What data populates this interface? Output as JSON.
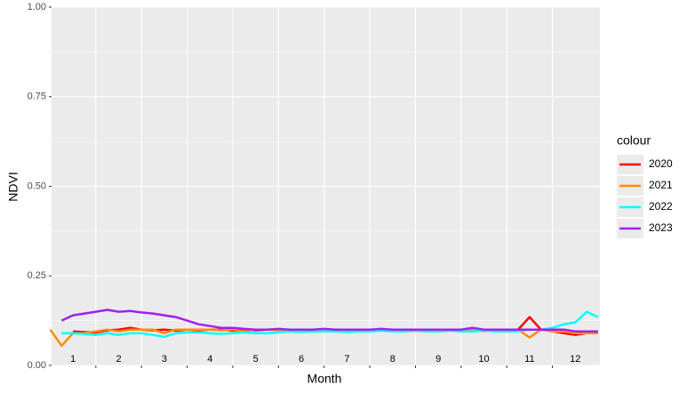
{
  "chart_data": {
    "type": "line",
    "x_label": "Month",
    "y_label": "NDVI",
    "legend_title": "colour",
    "legend_position": "right",
    "x": [
      0.5,
      0.75,
      1,
      1.25,
      1.5,
      1.75,
      2,
      2.25,
      2.5,
      2.75,
      3,
      3.25,
      3.5,
      3.75,
      4,
      4.25,
      4.5,
      4.75,
      5,
      5.25,
      5.5,
      5.75,
      6,
      6.25,
      6.5,
      6.75,
      7,
      7.25,
      7.5,
      7.75,
      8,
      8.25,
      8.5,
      8.75,
      9,
      9.25,
      9.5,
      9.75,
      10,
      10.25,
      10.5,
      10.75,
      11,
      11.25,
      11.5,
      11.75,
      12,
      12.25,
      12.5
    ],
    "series": [
      {
        "name": "2020",
        "color": "#ff0000",
        "values": [
          null,
          null,
          0.095,
          0.093,
          0.092,
          0.098,
          0.1,
          0.105,
          0.1,
          0.098,
          0.1,
          0.097,
          0.1,
          0.098,
          0.1,
          0.1,
          0.097,
          0.1,
          0.098,
          0.1,
          0.1,
          0.099,
          0.1,
          0.1,
          0.098,
          0.1,
          0.1,
          0.1,
          0.1,
          0.099,
          0.1,
          0.1,
          0.1,
          0.1,
          0.098,
          0.1,
          0.1,
          0.1,
          0.1,
          0.1,
          0.1,
          0.1,
          0.135,
          0.1,
          0.095,
          0.09,
          0.085,
          0.09,
          0.095
        ]
      },
      {
        "name": "2021",
        "color": "#ff8c00",
        "values": [
          0.1,
          0.055,
          0.09,
          0.09,
          0.095,
          0.1,
          0.095,
          0.1,
          0.1,
          0.1,
          0.09,
          0.1,
          0.1,
          0.1,
          0.1,
          0.098,
          0.1,
          0.095,
          0.1,
          0.1,
          0.098,
          0.1,
          0.1,
          0.1,
          0.1,
          0.1,
          0.098,
          0.1,
          0.1,
          0.1,
          0.1,
          0.1,
          0.1,
          0.1,
          0.098,
          0.1,
          0.1,
          0.1,
          0.095,
          0.1,
          0.1,
          0.1,
          0.078,
          0.1,
          0.095,
          0.095,
          0.09,
          0.09,
          0.09
        ]
      },
      {
        "name": "2022",
        "color": "#00ffff",
        "values": [
          null,
          0.09,
          0.09,
          0.088,
          0.085,
          0.09,
          0.085,
          0.09,
          0.09,
          0.085,
          0.08,
          0.09,
          0.092,
          0.092,
          0.09,
          0.088,
          0.09,
          0.092,
          0.09,
          0.09,
          0.092,
          0.095,
          0.093,
          0.095,
          0.095,
          0.095,
          0.093,
          0.095,
          0.095,
          0.097,
          0.095,
          0.095,
          0.097,
          0.095,
          0.095,
          0.097,
          0.095,
          0.095,
          0.097,
          0.095,
          0.095,
          0.095,
          0.1,
          0.1,
          0.105,
          0.115,
          0.12,
          0.15,
          0.135
        ]
      },
      {
        "name": "2023",
        "color": "#a020f0",
        "values": [
          null,
          0.125,
          0.14,
          0.145,
          0.15,
          0.155,
          0.15,
          0.152,
          0.148,
          0.145,
          0.14,
          0.135,
          0.125,
          0.115,
          0.11,
          0.105,
          0.105,
          0.102,
          0.1,
          0.1,
          0.102,
          0.1,
          0.1,
          0.1,
          0.102,
          0.1,
          0.1,
          0.1,
          0.1,
          0.102,
          0.1,
          0.1,
          0.1,
          0.1,
          0.1,
          0.1,
          0.1,
          0.105,
          0.1,
          0.1,
          0.1,
          0.1,
          0.1,
          0.1,
          0.1,
          0.1,
          0.095,
          0.095,
          0.095
        ]
      }
    ],
    "xlim": [
      0.53,
      12.54
    ],
    "xticks": [
      1,
      2,
      3,
      4,
      5,
      6,
      7,
      8,
      9,
      10,
      11,
      12
    ],
    "xbreaks": [
      1.5,
      2.5,
      3.5,
      4.5,
      5.5,
      6.5,
      7.5,
      8.5,
      9.5,
      10.5,
      11.5
    ],
    "ylim": [
      0,
      1
    ],
    "yticks": [
      {
        "value": 0,
        "label": "0.00"
      },
      {
        "value": 0.25,
        "label": "0.25"
      },
      {
        "value": 0.5,
        "label": "0.50"
      },
      {
        "value": 0.75,
        "label": "0.75"
      },
      {
        "value": 1,
        "label": "1.00"
      }
    ],
    "grid": true
  }
}
